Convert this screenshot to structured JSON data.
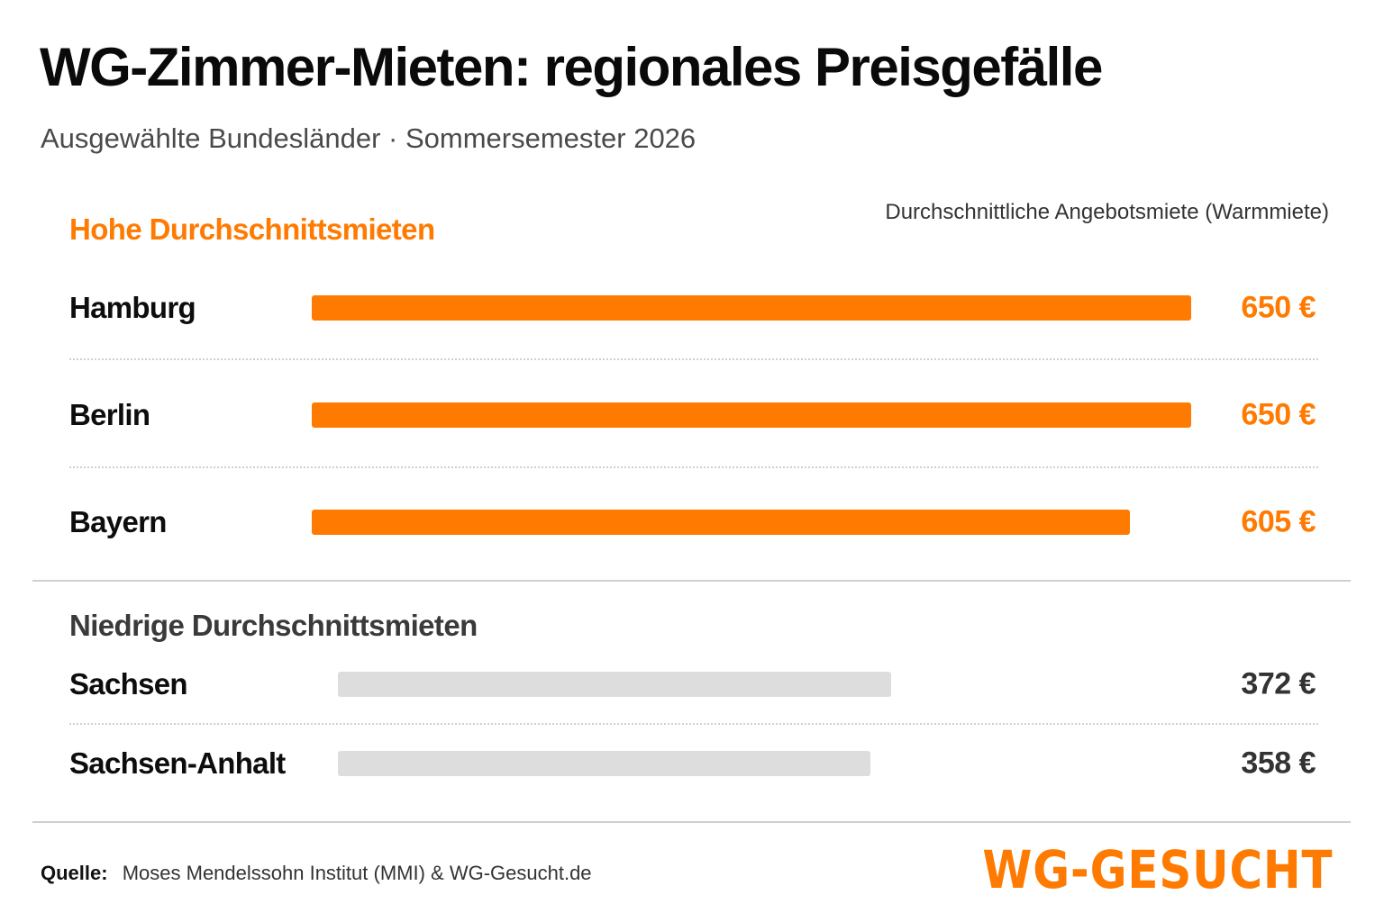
{
  "title": "WG-Zimmer-Mieten: regionales Preisgefälle",
  "subtitle": "Ausgewählte Bundesländer · Sommersemester 2026",
  "source": {
    "label": "Quelle:",
    "text": "Moses Mendelssohn Institut (MMI) & WG-Gesucht.de"
  },
  "logo_text": "WG-GESUCHT",
  "colors": {
    "accent": "#ff7a00",
    "low_bar": "#dddddd",
    "low_value": "#333333",
    "high_label": "#ff7a00"
  },
  "chart_data": {
    "type": "bar",
    "orientation": "horizontal",
    "value_label": "Durchschnittliche Angebotsmiete (Warmmiete)",
    "unit": "€",
    "groups": [
      {
        "name": "Hohe Durchschnittsmieten",
        "color": "#ff7a00",
        "categories": [
          "Hamburg",
          "Berlin",
          "Bayern"
        ],
        "values": [
          650,
          650,
          605
        ],
        "value_labels": [
          "650 €",
          "650 €",
          "605 €"
        ]
      },
      {
        "name": "Niedrige Durchschnittsmieten",
        "color": "#dddddd",
        "categories": [
          "Sachsen",
          "Sachsen-Anhalt"
        ],
        "values": [
          372,
          358
        ],
        "value_labels": [
          "372 €",
          "358 €"
        ]
      }
    ],
    "grid": false,
    "legend": "none"
  }
}
